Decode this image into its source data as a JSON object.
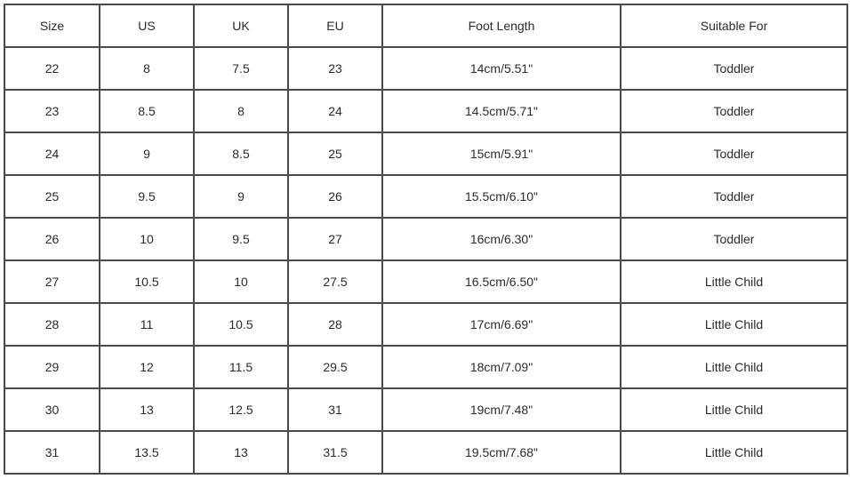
{
  "table": {
    "headers": [
      "Size",
      "US",
      "UK",
      "EU",
      "Foot Length",
      "Suitable For"
    ],
    "rows": [
      [
        "22",
        "8",
        "7.5",
        "23",
        "14cm/5.51\"",
        "Toddler"
      ],
      [
        "23",
        "8.5",
        "8",
        "24",
        "14.5cm/5.71\"",
        "Toddler"
      ],
      [
        "24",
        "9",
        "8.5",
        "25",
        "15cm/5.91\"",
        "Toddler"
      ],
      [
        "25",
        "9.5",
        "9",
        "26",
        "15.5cm/6.10\"",
        "Toddler"
      ],
      [
        "26",
        "10",
        "9.5",
        "27",
        "16cm/6.30\"",
        "Toddler"
      ],
      [
        "27",
        "10.5",
        "10",
        "27.5",
        "16.5cm/6.50\"",
        "Little Child"
      ],
      [
        "28",
        "11",
        "10.5",
        "28",
        "17cm/6.69\"",
        "Little Child"
      ],
      [
        "29",
        "12",
        "11.5",
        "29.5",
        "18cm/7.09\"",
        "Little Child"
      ],
      [
        "30",
        "13",
        "12.5",
        "31",
        "19cm/7.48\"",
        "Little Child"
      ],
      [
        "31",
        "13.5",
        "13",
        "31.5",
        "19.5cm/7.68\"",
        "Little Child"
      ]
    ]
  }
}
